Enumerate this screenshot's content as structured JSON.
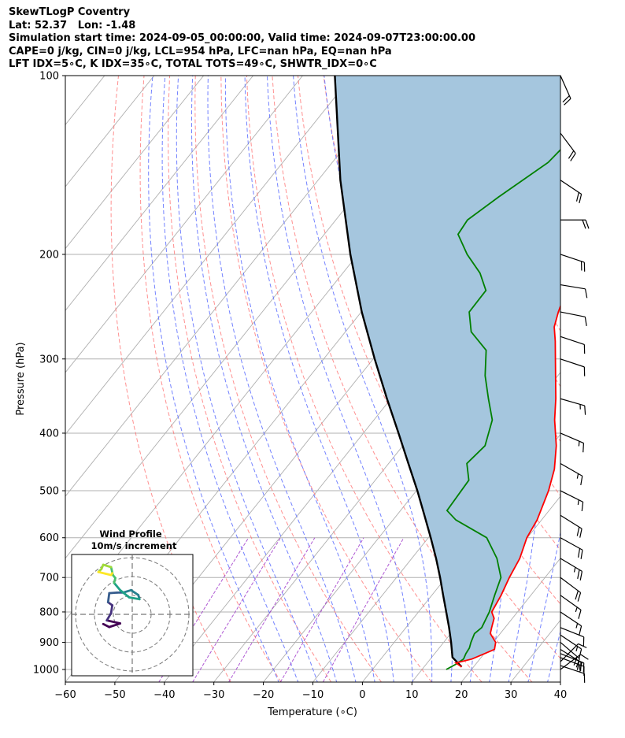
{
  "title_lines": [
    "SkewTLogP Coventry",
    "Lat: 52.37   Lon: -1.48",
    "Simulation start time: 2024-09-05_00:00:00, Valid time: 2024-09-07T23:00:00.00",
    "CAPE=0 j/kg, CIN=0 j/kg, LCL=954 hPa, LFC=nan hPa, EQ=nan hPa",
    "LFT IDX=5∘C, K IDX=35∘C, TOTAL TOTS=49∘C, SHWTR_IDX=0∘C"
  ],
  "chart_data": {
    "type": "line",
    "subtype": "skewT-logP",
    "xlabel": "Temperature (∘C)",
    "ylabel": "Pressure (hPa)",
    "xlim": [
      -60,
      40
    ],
    "ylim": [
      1050,
      100
    ],
    "x_ticks": [
      -60,
      -50,
      -40,
      -30,
      -20,
      -10,
      0,
      10,
      20,
      30,
      40
    ],
    "y_ticks": [
      100,
      200,
      300,
      400,
      500,
      600,
      700,
      800,
      900,
      1000
    ],
    "y_scale": "log",
    "grid": true,
    "colors": {
      "temperature": "#ff0000",
      "dewpoint": "#008000",
      "parcel": "#000000",
      "shading": "#a5c6de",
      "dry_adiabats": "#ff6b6b",
      "moist_adiabats": "#5b6cff",
      "mixing_ratio": "#9b30c8",
      "isotherms": "#b0b0b0"
    },
    "series": [
      {
        "role": "temperature",
        "pressure": [
          990,
          975,
          960,
          940,
          925,
          900,
          870,
          850,
          820,
          800,
          750,
          700,
          650,
          600,
          560,
          500,
          460,
          420,
          380,
          350,
          300,
          280,
          265,
          250,
          240,
          225,
          210,
          200,
          185,
          170,
          160,
          150,
          140,
          130,
          120,
          110,
          100
        ],
        "value": [
          17.6,
          15.8,
          18.4,
          20.1,
          21.4,
          20.5,
          18.0,
          17.3,
          16.3,
          14.8,
          14.0,
          12.8,
          11.8,
          9.9,
          9.1,
          6.7,
          4.4,
          1.0,
          -3.5,
          -6.7,
          -13.2,
          -16.1,
          -18.6,
          -20.2,
          -21.1,
          -17.3,
          -14.4,
          -12.1,
          -9.8,
          -5.5,
          -4.5,
          -3.0,
          -1.5,
          0.5,
          3.0,
          5.0,
          7.0
        ]
      },
      {
        "role": "dewpoint",
        "pressure": [
          1000,
          980,
          960,
          940,
          920,
          900,
          870,
          850,
          800,
          750,
          700,
          650,
          600,
          560,
          540,
          480,
          450,
          420,
          380,
          350,
          320,
          290,
          270,
          250,
          230,
          215,
          200,
          185,
          175,
          160,
          140,
          120,
          100
        ],
        "value": [
          14.9,
          16.0,
          16.7,
          16.3,
          16.1,
          15.5,
          14.8,
          15.3,
          14.3,
          12.7,
          11.1,
          7.2,
          1.8,
          -7.3,
          -10.6,
          -11.1,
          -14.2,
          -13.4,
          -16.1,
          -20.3,
          -24.7,
          -28.6,
          -34.6,
          -38.2,
          -38.3,
          -42.3,
          -47.9,
          -53.0,
          -53.4,
          -50.8,
          -46.4,
          -45.0,
          -42.0
        ]
      },
      {
        "role": "parcel",
        "pressure": [
          990,
          954,
          900,
          850,
          800,
          750,
          700,
          650,
          600,
          550,
          500,
          450,
          400,
          350,
          300,
          250,
          200,
          150,
          100
        ],
        "value": [
          17.6,
          14.2,
          11.5,
          8.7,
          5.6,
          2.3,
          -1.2,
          -5.1,
          -9.5,
          -14.4,
          -19.8,
          -26.0,
          -32.9,
          -40.8,
          -49.7,
          -59.9,
          -71.5,
          -85.5,
          -103.5
        ]
      }
    ],
    "wind_barbs": {
      "pressure": [
        1000,
        985,
        970,
        955,
        940,
        925,
        900,
        875,
        850,
        800,
        750,
        700,
        650,
        600,
        550,
        500,
        450,
        400,
        350,
        300,
        275,
        250,
        225,
        200,
        175,
        150,
        125,
        100
      ],
      "u_ms": [
        -4,
        -6,
        -4,
        -8,
        -10,
        -8,
        -7,
        -6,
        -5,
        -6,
        -7,
        -8,
        -10,
        -9,
        -8,
        -8,
        -7,
        -7,
        -7,
        -6,
        -6,
        -5,
        -6,
        -9,
        -11,
        -9,
        -6,
        -4
      ],
      "v_ms": [
        -3,
        2,
        -4,
        3,
        4,
        5,
        6,
        4,
        2,
        4,
        5,
        6,
        6,
        5,
        5,
        4,
        4,
        3,
        2,
        2,
        2,
        1,
        1,
        3,
        0,
        6,
        8,
        9
      ]
    },
    "hodograph": {
      "title": "Wind Profile",
      "subtitle": "10m/s increment",
      "rings_ms": [
        10,
        20,
        30
      ],
      "u": [
        -4.8,
        -3.8,
        -2.0,
        -4.2,
        -3.5,
        -3.3,
        -4.0,
        -3.8,
        -2.5,
        -1.5,
        -0.2,
        1.0,
        1.2,
        -0.5,
        -2.0,
        -3.0,
        -2.8,
        -3.2,
        -3.5,
        -4.8,
        -5.1,
        -5.6,
        -3.5,
        -3.3
      ],
      "v": [
        -1.6,
        -2.1,
        -1.5,
        -1.0,
        0.2,
        1.5,
        2.0,
        3.5,
        3.6,
        3.6,
        4.0,
        3.2,
        2.5,
        2.8,
        4.0,
        5.2,
        6.0,
        6.5,
        7.8,
        8.2,
        7.5,
        7.0,
        6.5,
        6.8
      ]
    }
  }
}
